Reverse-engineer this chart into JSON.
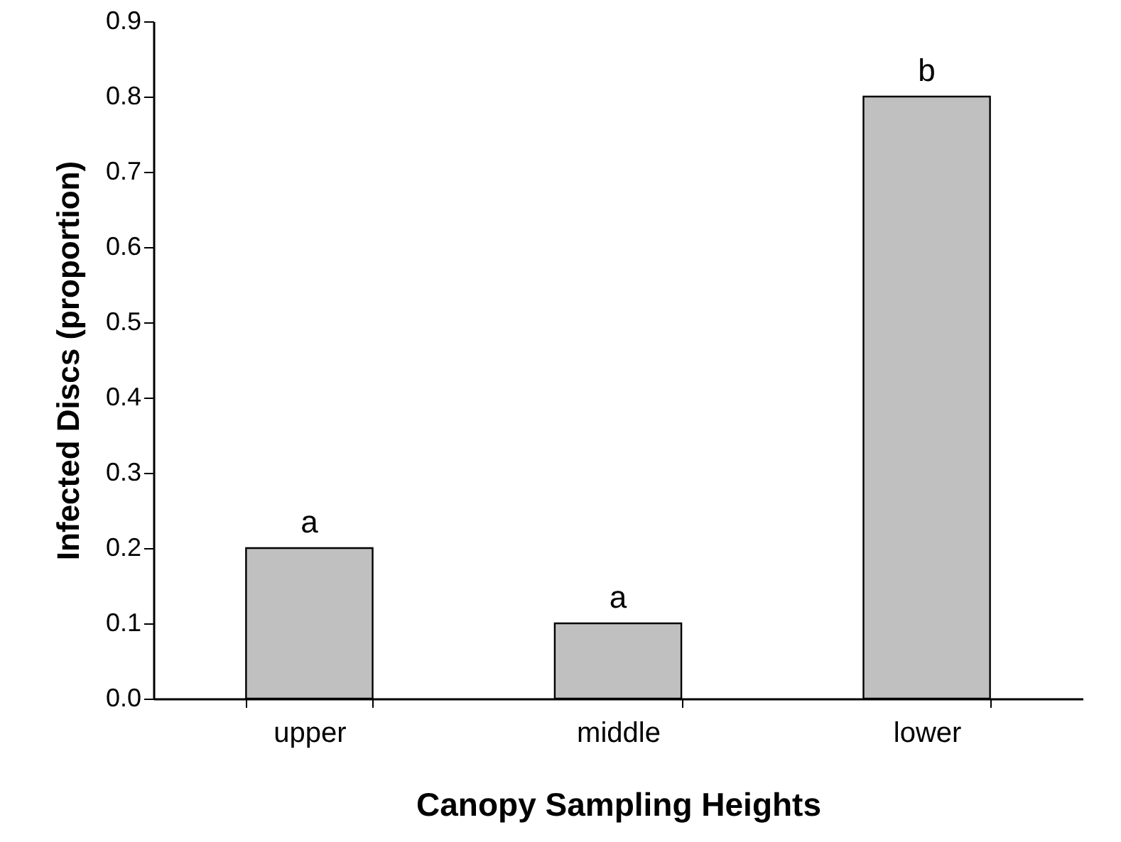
{
  "chart_data": {
    "type": "bar",
    "xlabel": "Canopy Sampling Heights",
    "ylabel": "Infected Discs (proportion)",
    "categories": [
      "upper",
      "middle",
      "lower"
    ],
    "values": [
      0.2,
      0.1,
      0.8
    ],
    "color": "#c0c0c0",
    "ylim": [
      0,
      0.9
    ],
    "yticks": [
      {
        "value": 0,
        "label": "0.0"
      },
      0.1,
      0.2,
      0.3,
      0.4,
      0.5,
      0.6,
      0.7,
      0.8,
      0.9
    ],
    "annotations": [
      {
        "text": "a",
        "x": "upper",
        "y": 0.2
      },
      {
        "text": "a",
        "x": "middle",
        "y": 0.1
      },
      {
        "text": "b",
        "x": "lower",
        "y": 0.8
      }
    ]
  }
}
